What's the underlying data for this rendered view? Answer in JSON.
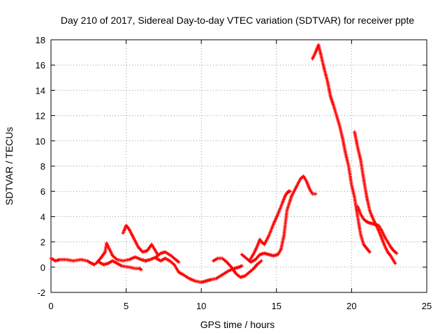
{
  "chart_data": {
    "type": "scatter",
    "title": "Day 210 of 2017, Sidereal Day-to-day VTEC variation (SDTVAR) for receiver ppte",
    "xlabel": "GPS time / hours",
    "ylabel": "SDTVAR / TECUs",
    "xlim": [
      0,
      25
    ],
    "ylim": [
      -2,
      18
    ],
    "xticks": [
      "0",
      "5",
      "10",
      "15",
      "20",
      "25"
    ],
    "yticks": [
      "-2",
      "0",
      "2",
      "4",
      "6",
      "8",
      "10",
      "12",
      "14",
      "16",
      "18"
    ],
    "grid": true,
    "marker": "+",
    "series": [
      {
        "name": "SDTVAR",
        "color": "#ff0000",
        "segments": [
          [
            [
              0.0,
              0.7
            ],
            [
              0.3,
              0.5
            ],
            [
              0.6,
              0.6
            ],
            [
              1.0,
              0.6
            ],
            [
              1.5,
              0.5
            ],
            [
              2.0,
              0.6
            ],
            [
              2.4,
              0.5
            ],
            [
              2.7,
              0.3
            ],
            [
              2.9,
              0.2
            ]
          ],
          [
            [
              3.0,
              0.3
            ],
            [
              3.3,
              0.7
            ],
            [
              3.6,
              1.2
            ],
            [
              3.7,
              1.9
            ],
            [
              3.9,
              1.4
            ],
            [
              4.1,
              0.9
            ],
            [
              4.4,
              0.6
            ],
            [
              4.8,
              0.5
            ],
            [
              5.2,
              0.6
            ],
            [
              5.6,
              0.8
            ],
            [
              6.0,
              0.6
            ],
            [
              6.3,
              0.5
            ]
          ],
          [
            [
              3.2,
              0.4
            ],
            [
              3.5,
              0.2
            ],
            [
              3.8,
              0.3
            ],
            [
              4.1,
              0.5
            ],
            [
              4.4,
              0.3
            ],
            [
              4.7,
              0.1
            ],
            [
              5.2,
              0.0
            ],
            [
              5.6,
              -0.1
            ],
            [
              5.9,
              -0.1
            ],
            [
              6.0,
              -0.2
            ]
          ],
          [
            [
              4.8,
              2.7
            ],
            [
              5.0,
              3.3
            ],
            [
              5.2,
              3.0
            ],
            [
              5.5,
              2.3
            ],
            [
              5.8,
              1.6
            ],
            [
              6.1,
              1.2
            ],
            [
              6.4,
              1.3
            ],
            [
              6.7,
              1.8
            ],
            [
              6.9,
              1.4
            ],
            [
              7.1,
              1.0
            ]
          ],
          [
            [
              6.3,
              0.5
            ],
            [
              6.6,
              0.6
            ],
            [
              7.0,
              0.8
            ],
            [
              7.3,
              1.1
            ],
            [
              7.6,
              1.2
            ],
            [
              8.0,
              0.9
            ],
            [
              8.3,
              0.6
            ],
            [
              8.5,
              0.4
            ]
          ],
          [
            [
              7.0,
              0.7
            ],
            [
              7.3,
              0.5
            ],
            [
              7.6,
              0.7
            ],
            [
              7.9,
              0.5
            ],
            [
              8.2,
              0.2
            ],
            [
              8.5,
              -0.4
            ],
            [
              8.8,
              -0.6
            ],
            [
              9.2,
              -0.9
            ],
            [
              9.6,
              -1.1
            ],
            [
              10.0,
              -1.2
            ],
            [
              10.3,
              -1.1
            ],
            [
              10.6,
              -1.0
            ]
          ],
          [
            [
              10.6,
              -1.0
            ],
            [
              11.0,
              -0.9
            ],
            [
              11.4,
              -0.6
            ],
            [
              11.8,
              -0.3
            ],
            [
              12.2,
              -0.1
            ],
            [
              12.5,
              0.0
            ],
            [
              12.7,
              0.1
            ]
          ],
          [
            [
              10.8,
              0.5
            ],
            [
              11.1,
              0.7
            ],
            [
              11.4,
              0.7
            ],
            [
              11.7,
              0.4
            ],
            [
              12.0,
              0.0
            ],
            [
              12.3,
              -0.5
            ],
            [
              12.6,
              -0.8
            ],
            [
              12.9,
              -0.7
            ],
            [
              13.2,
              -0.4
            ],
            [
              13.5,
              -0.1
            ],
            [
              13.7,
              0.2
            ],
            [
              14.0,
              0.5
            ]
          ],
          [
            [
              12.7,
              1.0
            ],
            [
              13.0,
              0.7
            ],
            [
              13.3,
              0.4
            ],
            [
              13.6,
              0.6
            ],
            [
              13.9,
              1.0
            ],
            [
              14.2,
              1.1
            ],
            [
              14.5,
              1.0
            ],
            [
              14.8,
              0.9
            ],
            [
              15.1,
              1.0
            ],
            [
              15.3,
              1.4
            ],
            [
              15.5,
              2.5
            ],
            [
              15.7,
              4.5
            ],
            [
              16.0,
              5.6
            ],
            [
              16.3,
              6.3
            ],
            [
              16.6,
              7.0
            ],
            [
              16.8,
              7.2
            ],
            [
              17.0,
              6.8
            ],
            [
              17.2,
              6.2
            ],
            [
              17.4,
              5.8
            ],
            [
              17.6,
              5.8
            ]
          ],
          [
            [
              13.2,
              0.5
            ],
            [
              13.5,
              1.1
            ],
            [
              13.7,
              1.6
            ],
            [
              13.9,
              2.2
            ],
            [
              14.0,
              2.0
            ],
            [
              14.2,
              1.8
            ],
            [
              14.5,
              2.5
            ],
            [
              14.8,
              3.4
            ],
            [
              15.1,
              4.2
            ],
            [
              15.4,
              5.1
            ],
            [
              15.6,
              5.7
            ],
            [
              15.8,
              6.0
            ],
            [
              15.9,
              6.0
            ]
          ],
          [
            [
              17.4,
              16.5
            ],
            [
              17.6,
              17.0
            ],
            [
              17.8,
              17.6
            ],
            [
              18.0,
              16.6
            ],
            [
              18.2,
              15.6
            ],
            [
              18.4,
              14.7
            ],
            [
              18.6,
              13.5
            ],
            [
              18.8,
              12.8
            ],
            [
              19.0,
              12.0
            ],
            [
              19.2,
              11.2
            ],
            [
              19.4,
              10.2
            ],
            [
              19.6,
              9.0
            ],
            [
              19.8,
              8.0
            ],
            [
              20.0,
              6.5
            ],
            [
              20.2,
              5.5
            ],
            [
              20.4,
              4.0
            ],
            [
              20.6,
              2.6
            ],
            [
              20.8,
              1.8
            ],
            [
              21.0,
              1.5
            ],
            [
              21.2,
              1.2
            ]
          ],
          [
            [
              20.2,
              10.7
            ],
            [
              20.4,
              9.5
            ],
            [
              20.6,
              8.5
            ],
            [
              20.8,
              7.0
            ],
            [
              21.0,
              5.6
            ],
            [
              21.2,
              4.5
            ],
            [
              21.4,
              3.9
            ],
            [
              21.6,
              3.4
            ],
            [
              21.8,
              2.9
            ],
            [
              22.0,
              2.3
            ],
            [
              22.2,
              1.7
            ],
            [
              22.4,
              1.2
            ],
            [
              22.6,
              0.9
            ],
            [
              22.8,
              0.5
            ],
            [
              22.9,
              0.3
            ]
          ],
          [
            [
              20.4,
              4.8
            ],
            [
              20.6,
              4.2
            ],
            [
              20.8,
              3.8
            ],
            [
              21.0,
              3.6
            ],
            [
              21.2,
              3.5
            ],
            [
              21.5,
              3.4
            ],
            [
              21.8,
              3.3
            ],
            [
              22.0,
              2.9
            ],
            [
              22.2,
              2.4
            ],
            [
              22.4,
              2.0
            ],
            [
              22.6,
              1.6
            ],
            [
              22.8,
              1.3
            ],
            [
              23.0,
              1.1
            ]
          ]
        ]
      }
    ]
  }
}
